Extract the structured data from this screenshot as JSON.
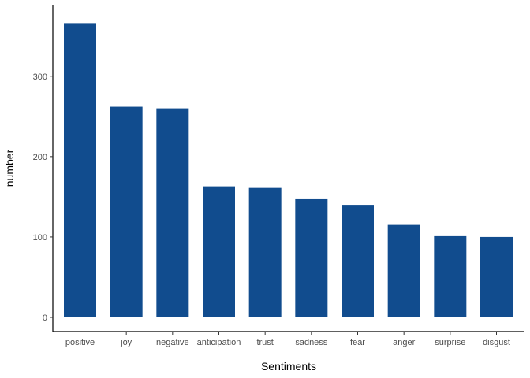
{
  "chart_data": {
    "type": "bar",
    "title": "",
    "xlabel": "Sentiments",
    "ylabel": "number",
    "categories": [
      "positive",
      "joy",
      "negative",
      "anticipation",
      "trust",
      "sadness",
      "fear",
      "anger",
      "surprise",
      "disgust"
    ],
    "values": [
      366,
      262,
      260,
      163,
      161,
      147,
      140,
      115,
      101,
      100
    ],
    "ylim": [
      0,
      385
    ],
    "yticks": [
      0,
      100,
      200,
      300
    ],
    "grid": false,
    "legend": "none",
    "bar_color": "#114c8e"
  }
}
